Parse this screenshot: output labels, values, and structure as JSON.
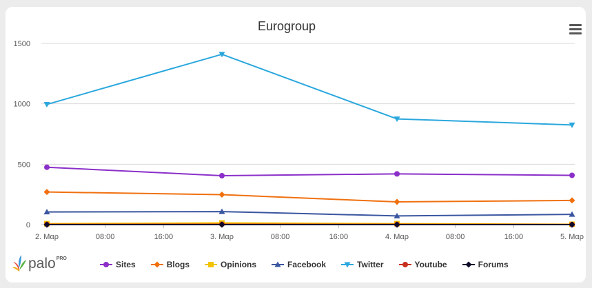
{
  "chart_data": {
    "type": "line",
    "title": "Eurogroup",
    "xlabel": "",
    "ylabel": "",
    "x_tick_labels": [
      "2. Μαρ",
      "08:00",
      "16:00",
      "3. Μαρ",
      "08:00",
      "16:00",
      "4. Μαρ",
      "08:00",
      "16:00",
      "5. Μαρ"
    ],
    "x_range_hours": [
      0,
      72
    ],
    "x": [
      0,
      24,
      48,
      72
    ],
    "y_ticks": [
      0,
      500,
      1000,
      1500
    ],
    "ylim": [
      0,
      1500
    ],
    "grid": true,
    "legend_position": "bottom",
    "series": [
      {
        "name": "Sites",
        "color": "#8b2fc9",
        "marker": "circle",
        "values": [
          475,
          405,
          420,
          408
        ]
      },
      {
        "name": "Blogs",
        "color": "#f0700f",
        "marker": "diamond",
        "values": [
          270,
          248,
          188,
          200
        ]
      },
      {
        "name": "Opinions",
        "color": "#f2c400",
        "marker": "square",
        "values": [
          8,
          14,
          8,
          3
        ]
      },
      {
        "name": "Facebook",
        "color": "#3a56a0",
        "marker": "triangle-up",
        "values": [
          105,
          108,
          72,
          85
        ]
      },
      {
        "name": "Twitter",
        "color": "#2aa7dd",
        "marker": "triangle-down",
        "values": [
          995,
          1410,
          875,
          825
        ]
      },
      {
        "name": "Youtube",
        "color": "#c8301e",
        "marker": "circle",
        "values": [
          2,
          3,
          2,
          1
        ]
      },
      {
        "name": "Forums",
        "color": "#0c0c2a",
        "marker": "diamond",
        "values": [
          0,
          0,
          0,
          0
        ]
      }
    ]
  },
  "branding": {
    "logo_text": "palo",
    "logo_sup": "PRO"
  }
}
